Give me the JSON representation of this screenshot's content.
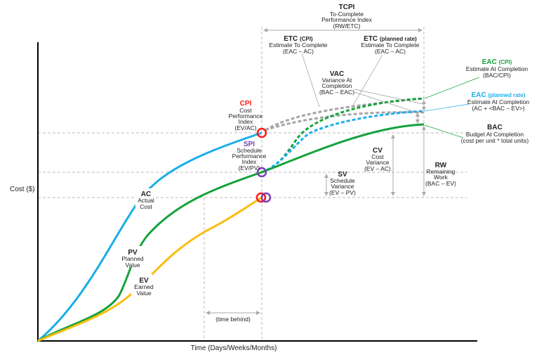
{
  "colors": {
    "ac": "#1aaee8",
    "pv": "#14a23c",
    "ev": "#fbbd0e",
    "cpi": "#ff1a1a",
    "spi": "#7b3fb5",
    "forecast_gray": "#a6a6a6"
  },
  "axes": {
    "y_label": "Cost ($)",
    "x_label": "Time (Days/Weeks/Months)"
  },
  "curves": {
    "ac": {
      "abbr": "AC",
      "line1": "Actual",
      "line2": "Cost"
    },
    "pv": {
      "abbr": "PV",
      "line1": "Planned",
      "line2": "Value"
    },
    "ev": {
      "abbr": "EV",
      "line1": "Earned",
      "line2": "Value"
    }
  },
  "tcpi": {
    "abbr": "TCPI",
    "line1": "To-Complete",
    "line2": "Performance Index",
    "formula": "(RW/ETC)"
  },
  "etc_cpi": {
    "abbr": "ETC",
    "qual": "(CPI)",
    "line1": "Estimate To Complete",
    "formula": "(EAC – AC)"
  },
  "etc_planned": {
    "abbr": "ETC",
    "qual": "(planned rate)",
    "line1": "Estimate To Complete",
    "formula": "(EAC – AC)"
  },
  "vac": {
    "abbr": "VAC",
    "line1": "Variance At",
    "line2": "Completion",
    "formula": "(BAC – EAC)"
  },
  "cpi": {
    "abbr": "CPI",
    "line1": "Cost",
    "line2": "Performance",
    "line3": "Index",
    "formula": "(EV/AC)"
  },
  "spi": {
    "abbr": "SPI",
    "line1": "Schedule",
    "line2": "Performance",
    "line3": "Index",
    "formula": "(EV/PV)"
  },
  "eac_cpi": {
    "abbr": "EAC",
    "qual": "(CPI)",
    "line1": "Estimate At Completion",
    "formula": "(BAC/CPI)"
  },
  "eac_planned": {
    "abbr": "EAC",
    "qual": "(planned rate)",
    "line1": "Estimate At Completion",
    "formula": "(AC + <BAC – EV>)"
  },
  "bac": {
    "abbr": "BAC",
    "line1": "Budget At Completion",
    "formula": "(cost per unit * total units)"
  },
  "cv": {
    "abbr": "CV",
    "line1": "Cost",
    "line2": "Variance",
    "formula": "(EV – AC)"
  },
  "sv": {
    "abbr": "SV",
    "line1": "Schedule",
    "line2": "Variance",
    "formula": "(EV – PV)"
  },
  "rw": {
    "abbr": "RW",
    "line1": "Remaining",
    "line2": "Work",
    "formula": "(BAC – EV)"
  },
  "time_behind": "(time behind)"
}
